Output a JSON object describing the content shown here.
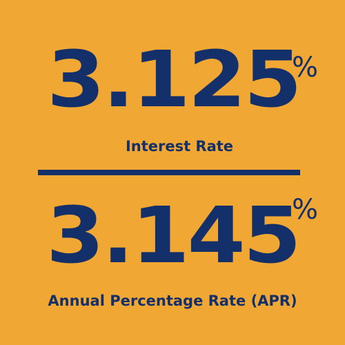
{
  "colors": {
    "background": "#F0A733",
    "foreground": "#14306B"
  },
  "interest_rate": {
    "value": "3.125",
    "symbol": "%",
    "label": "Interest Rate"
  },
  "apr": {
    "value": "3.145",
    "symbol": "%",
    "label": "Annual Percentage Rate (APR)"
  }
}
